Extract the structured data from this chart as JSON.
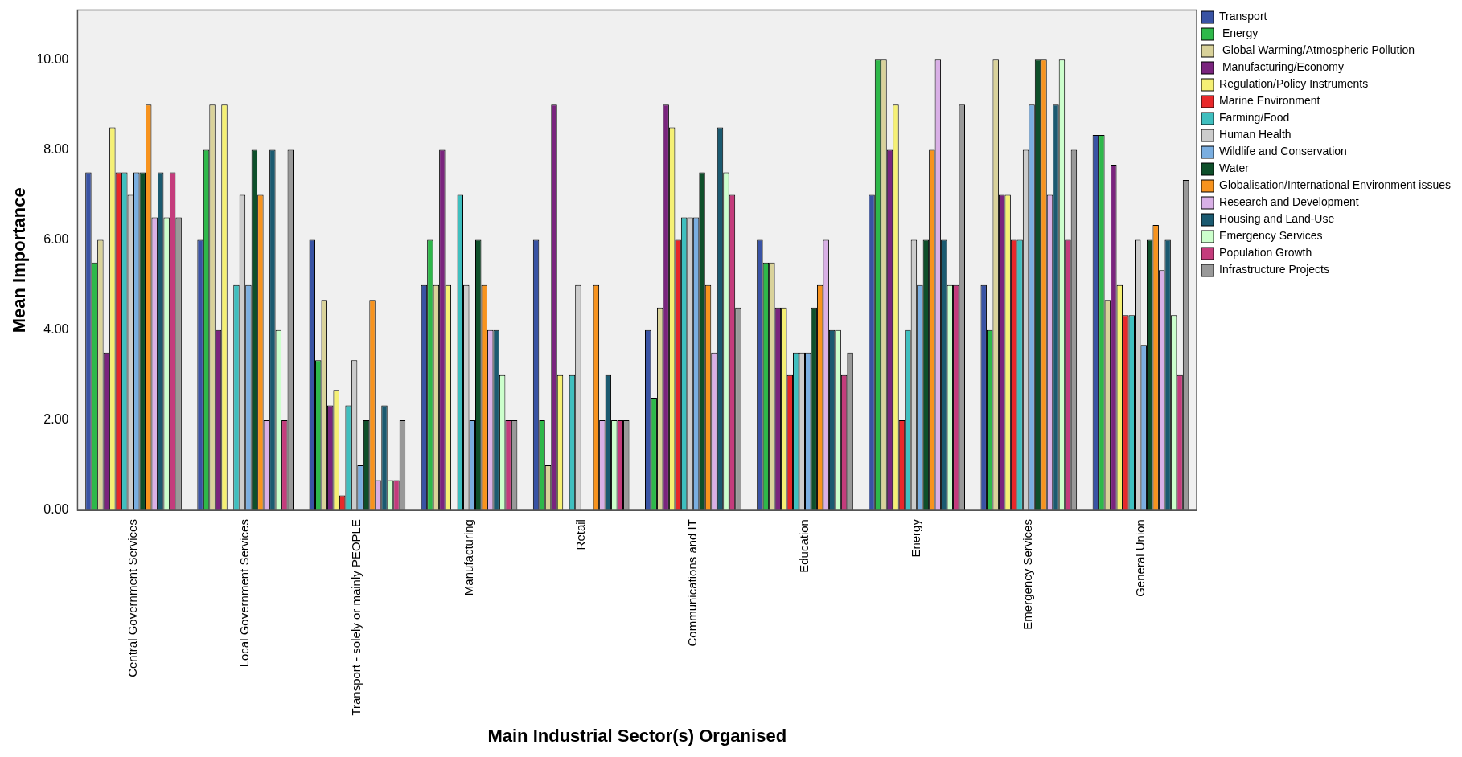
{
  "chart_data": {
    "type": "bar",
    "xlabel": "Main Industrial Sector(s) Organised",
    "ylabel": "Mean Importance",
    "categories": [
      "Central Government Services",
      "Local Government Services",
      "Transport - solely or mainly PEOPLE",
      "Manufacturing",
      "Retail",
      "Communications and IT",
      "Education",
      "Energy",
      "Emergency Services",
      "General Union"
    ],
    "ylim": [
      0,
      11.1
    ],
    "yticks": [
      {
        "value": 0,
        "label": "0.00"
      },
      {
        "value": 2,
        "label": "2.00"
      },
      {
        "value": 4,
        "label": "4.00"
      },
      {
        "value": 6,
        "label": "6.00"
      },
      {
        "value": 8,
        "label": "8.00"
      },
      {
        "value": 10,
        "label": "10.00"
      }
    ],
    "grid": false,
    "legend": "top right",
    "series": [
      {
        "name": "Transport",
        "color": "#3953a4",
        "values": [
          7.5,
          6,
          6,
          5,
          6,
          4,
          6,
          7,
          5,
          8.33
        ]
      },
      {
        "name": " Energy",
        "color": "#2eb84a",
        "values": [
          5.5,
          8,
          3.33,
          6,
          2,
          2.5,
          5.5,
          10,
          4,
          8.33
        ]
      },
      {
        "name": " Global Warming/Atmospheric Pollution",
        "color": "#d9d29a",
        "values": [
          6,
          9,
          4.67,
          5,
          1,
          4.5,
          5.5,
          10,
          10,
          4.67
        ]
      },
      {
        "name": " Manufacturing/Economy",
        "color": "#7a247e",
        "values": [
          3.5,
          4,
          2.33,
          8,
          9,
          9,
          4.5,
          8,
          7,
          7.67
        ]
      },
      {
        "name": "Regulation/Policy Instruments",
        "color": "#f5f074",
        "values": [
          8.5,
          9,
          2.67,
          5,
          3,
          8.5,
          4.5,
          9,
          7,
          5
        ]
      },
      {
        "name": "Marine Environment",
        "color": "#e8282a",
        "values": [
          7.5,
          null,
          0.33,
          null,
          null,
          6,
          3,
          2,
          6,
          4.33
        ]
      },
      {
        "name": "Farming/Food",
        "color": "#3fbfbf",
        "values": [
          7.5,
          5,
          2.33,
          7,
          3,
          6.5,
          3.5,
          4,
          6,
          4.33
        ]
      },
      {
        "name": "Human Health",
        "color": "#cccccc",
        "values": [
          7,
          7,
          3.33,
          5,
          5,
          6.5,
          3.5,
          6,
          8,
          6
        ]
      },
      {
        "name": "Wildlife and Conservation",
        "color": "#7aaee0",
        "values": [
          7.5,
          5,
          1,
          2,
          null,
          6.5,
          3.5,
          5,
          9,
          3.67
        ]
      },
      {
        "name": "Water",
        "color": "#0e4f2a",
        "values": [
          7.5,
          8,
          2,
          6,
          null,
          7.5,
          4.5,
          6,
          10,
          6
        ]
      },
      {
        "name": "Globalisation/International Environment issues",
        "color": "#f7931e",
        "values": [
          9,
          7,
          4.67,
          5,
          5,
          5,
          5,
          8,
          10,
          6.33
        ]
      },
      {
        "name": "Research and Development",
        "color": "#d9b0e6",
        "values": [
          6.5,
          2,
          0.67,
          4,
          2,
          3.5,
          6,
          10,
          7,
          5.33
        ]
      },
      {
        "name": "Housing and Land-Use",
        "color": "#1b5a70",
        "values": [
          7.5,
          8,
          2.33,
          4,
          3,
          8.5,
          4,
          6,
          9,
          6
        ]
      },
      {
        "name": "Emergency Services",
        "color": "#ccffcc",
        "values": [
          6.5,
          4,
          0.67,
          3,
          2,
          7.5,
          4,
          5,
          10,
          4.33
        ]
      },
      {
        "name": "Population Growth",
        "color": "#c43c7c",
        "values": [
          7.5,
          2,
          0.67,
          2,
          2,
          7,
          3,
          5,
          6,
          3
        ]
      },
      {
        "name": "Infrastructure Projects",
        "color": "#999999",
        "values": [
          6.5,
          8,
          2,
          2,
          2,
          4.5,
          3.5,
          9,
          8,
          7.33
        ]
      }
    ]
  }
}
